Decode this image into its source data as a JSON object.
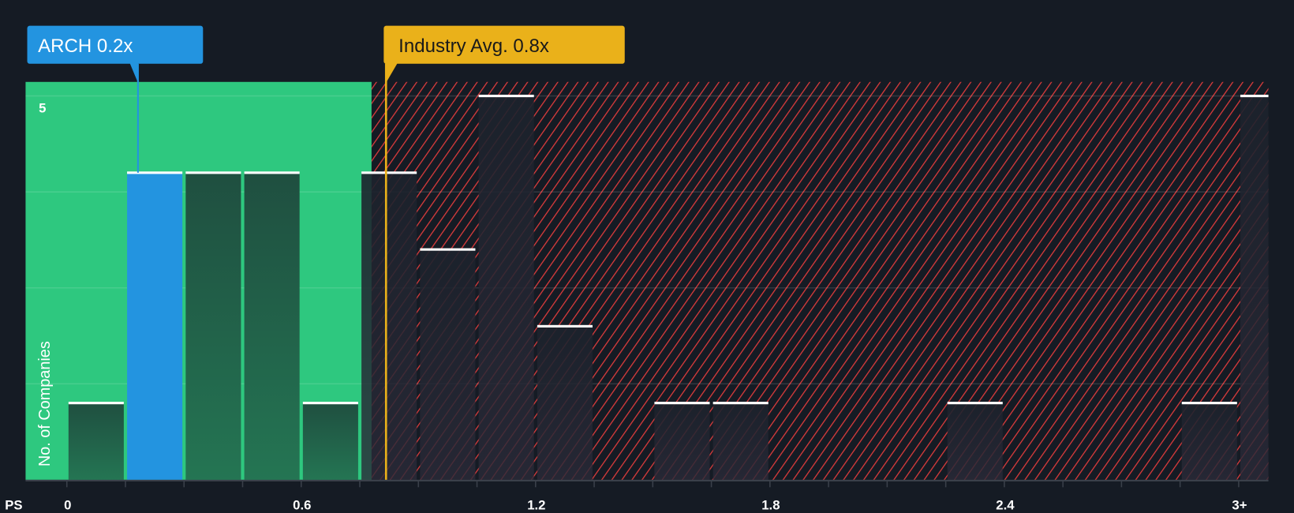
{
  "chart_data": {
    "type": "bar",
    "title": "",
    "xlabel": "PS",
    "ylabel": "No. of Companies",
    "bin_width": 0.15,
    "bins_start": [
      0,
      0.15,
      0.3,
      0.45,
      0.6,
      0.75,
      0.9,
      1.05,
      1.2,
      1.35,
      1.5,
      1.65,
      1.8,
      1.95,
      2.1,
      2.25,
      2.4,
      2.55,
      2.7,
      2.85,
      3.0
    ],
    "values": [
      1,
      4,
      4,
      4,
      1,
      4,
      3,
      5,
      2,
      0,
      1,
      1,
      0,
      0,
      0,
      1,
      0,
      0,
      0,
      1,
      5
    ],
    "x_ticks": [
      "0",
      "0.6",
      "1.2",
      "1.8",
      "2.4",
      "3+"
    ],
    "x_tick_values": [
      0,
      0.6,
      1.2,
      1.8,
      2.4,
      3.0
    ],
    "y_ticks": [
      "5"
    ],
    "y_tick_values": [
      5
    ],
    "ylim": [
      0,
      5.15
    ],
    "xlim": [
      -0.11,
      3.1
    ],
    "grid": true,
    "highlight": {
      "label": "ARCH 0.2x",
      "value": 0.18,
      "bin_index": 1,
      "color": "#2394e0"
    },
    "industry_avg": {
      "label": "Industry Avg. 0.8x",
      "value": 0.815,
      "color": "#eab11a"
    },
    "fair_zone_end": 0.778,
    "colors": {
      "fair": "#2ec87f",
      "fair_bar": "#1f5a48",
      "overvalued_hatch": "#e03c3c",
      "background": "#151b24",
      "bar_cap": "#ffffff"
    }
  }
}
